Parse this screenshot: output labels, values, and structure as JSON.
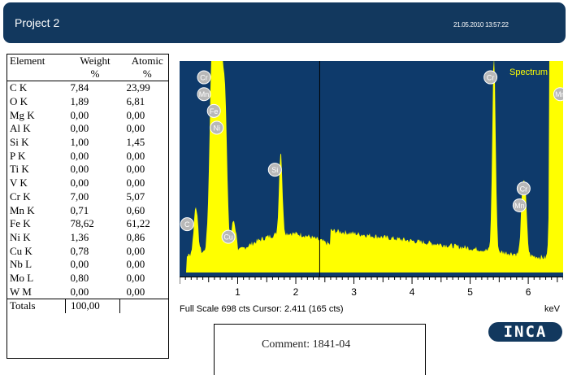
{
  "header": {
    "title": "Project 2",
    "datetime": "21.05.2010 13:57:22"
  },
  "table": {
    "headers": [
      [
        "Element",
        "Weight",
        "Atomic"
      ],
      [
        "",
        "%",
        "%"
      ]
    ],
    "rows": [
      [
        "C K",
        "7,84",
        "23,99"
      ],
      [
        "O K",
        "1,89",
        "6,81"
      ],
      [
        "Mg K",
        "0,00",
        "0,00"
      ],
      [
        "Al K",
        "0,00",
        "0,00"
      ],
      [
        "Si K",
        "1,00",
        "1,45"
      ],
      [
        "P K",
        "0,00",
        "0,00"
      ],
      [
        "Ti K",
        "0,00",
        "0,00"
      ],
      [
        "V K",
        "0,00",
        "0,00"
      ],
      [
        "Cr K",
        "7,00",
        "5,07"
      ],
      [
        "Mn K",
        "0,71",
        "0,60"
      ],
      [
        "Fe K",
        "78,62",
        "61,22"
      ],
      [
        "Ni K",
        "1,36",
        "0,86"
      ],
      [
        "Cu K",
        "0,78",
        "0,00"
      ],
      [
        "Nb L",
        "0,00",
        "0,00"
      ],
      [
        "Mo L",
        "0,80",
        "0,00"
      ],
      [
        "W M",
        "0,00",
        "0,00"
      ]
    ],
    "totals": [
      "Totals",
      "100,00",
      ""
    ]
  },
  "spectrum": {
    "label": "Spectrum 5",
    "x_ticks": [
      "1",
      "2",
      "3",
      "4",
      "5",
      "6"
    ],
    "x_range_kev": [
      0.0,
      6.6
    ],
    "y_full_scale_cts": 698,
    "cursor_kev": 2.411,
    "background_color": "#0e3a6b",
    "fill_color": "#ffff00",
    "peaks": [
      {
        "element": "C",
        "kev": 0.28,
        "height": 0.23
      },
      {
        "element": "O",
        "kev": 0.52,
        "height": 0.24
      },
      {
        "element": "Cr",
        "kev": 0.57,
        "height": 1.0
      },
      {
        "element": "Mn",
        "kev": 0.64,
        "height": 1.0
      },
      {
        "element": "Fe",
        "kev": 0.7,
        "height": 1.0
      },
      {
        "element": "Ni",
        "kev": 0.78,
        "height": 0.73
      },
      {
        "element": "Cu",
        "kev": 0.93,
        "height": 0.12
      },
      {
        "element": "Si",
        "kev": 1.74,
        "height": 0.4
      },
      {
        "element": "Cr",
        "kev": 5.41,
        "height": 0.95
      },
      {
        "element": "Mn",
        "kev": 5.9,
        "height": 0.27
      },
      {
        "element": "Cr",
        "kev": 5.95,
        "height": 0.27
      },
      {
        "element": "Fe",
        "kev": 6.4,
        "height": 1.0
      },
      {
        "element": "Mn",
        "kev": 6.49,
        "height": 1.0
      }
    ],
    "peak_labels": [
      {
        "text": "C",
        "kev": 0.13,
        "frac": 0.23
      },
      {
        "text": "Cr",
        "kev": 0.42,
        "frac": 0.93
      },
      {
        "text": "Mn",
        "kev": 0.42,
        "frac": 0.85
      },
      {
        "text": "Fe",
        "kev": 0.59,
        "frac": 0.77
      },
      {
        "text": "Ni",
        "kev": 0.64,
        "frac": 0.69
      },
      {
        "text": "Cu",
        "kev": 0.84,
        "frac": 0.17
      },
      {
        "text": "Si",
        "kev": 1.64,
        "frac": 0.49
      },
      {
        "text": "Cr",
        "kev": 5.35,
        "frac": 0.93
      },
      {
        "text": "Cr",
        "kev": 5.92,
        "frac": 0.4
      },
      {
        "text": "Mn",
        "kev": 5.85,
        "frac": 0.32
      },
      {
        "text": "Mn",
        "kev": 6.55,
        "frac": 0.85
      }
    ]
  },
  "footer": {
    "scale_text": "Full Scale 698 cts  Cursor: 2.411  (165 cts)",
    "unit": "keV"
  },
  "comment": "Comment: 1841-04",
  "logo": "INCA"
}
